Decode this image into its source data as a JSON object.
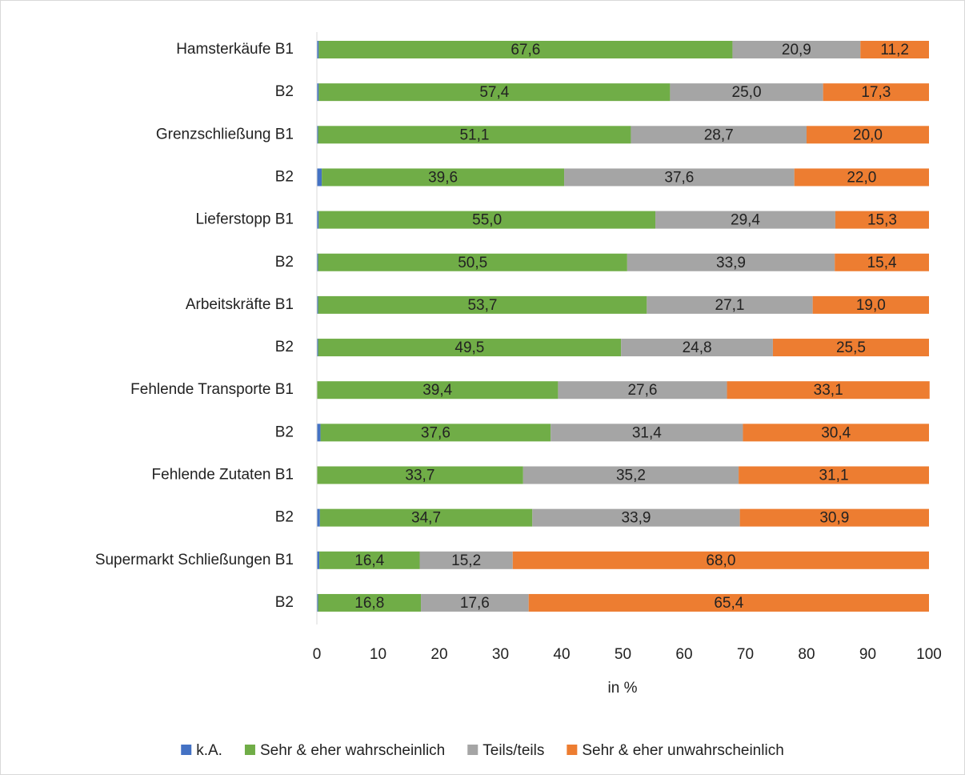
{
  "chart_data": {
    "type": "stacked_barh",
    "categories": [
      "Hamsterkäufe B1",
      "B2",
      "Grenzschließung B1",
      "B2",
      "Lieferstopp B1",
      "B2",
      "Arbeitskräfte B1",
      "B2",
      "Fehlende Transporte B1",
      "B2",
      "Fehlende Zutaten B1",
      "B2",
      "Supermarkt Schließungen B1",
      "B2"
    ],
    "series": [
      {
        "name": "k.A.",
        "color": "#4472c4",
        "values": [
          0.3,
          0.3,
          0.2,
          0.8,
          0.3,
          0.2,
          0.2,
          0.2,
          0,
          0.6,
          0,
          0.5,
          0.4,
          0.2
        ]
      },
      {
        "name": "Sehr & eher wahrscheinlich",
        "color": "#70ad47",
        "values": [
          67.6,
          57.4,
          51.1,
          39.6,
          55.0,
          50.5,
          53.7,
          49.5,
          39.4,
          37.6,
          33.7,
          34.7,
          16.4,
          16.8
        ],
        "value_labels": [
          "67,6",
          "57,4",
          "51,1",
          "39,6",
          "55,0",
          "50,5",
          "53,7",
          "49,5",
          "39,4",
          "37,6",
          "33,7",
          "34,7",
          "16,4",
          "16,8"
        ]
      },
      {
        "name": "Teils/teils",
        "color": "#a5a5a5",
        "values": [
          20.9,
          25.0,
          28.7,
          37.6,
          29.4,
          33.9,
          27.1,
          24.8,
          27.6,
          31.4,
          35.2,
          33.9,
          15.2,
          17.6
        ],
        "value_labels": [
          "20,9",
          "25,0",
          "28,7",
          "37,6",
          "29,4",
          "33,9",
          "27,1",
          "24,8",
          "27,6",
          "31,4",
          "35,2",
          "33,9",
          "15,2",
          "17,6"
        ]
      },
      {
        "name": "Sehr & eher unwahrscheinlich",
        "color": "#ed7d31",
        "values": [
          11.2,
          17.3,
          20.0,
          22.0,
          15.3,
          15.4,
          19.0,
          25.5,
          33.1,
          30.4,
          31.1,
          30.9,
          68.0,
          65.4
        ],
        "value_labels": [
          "11,2",
          "17,3",
          "20,0",
          "22,0",
          "15,3",
          "15,4",
          "19,0",
          "25,5",
          "33,1",
          "30,4",
          "31,1",
          "30,9",
          "68,0",
          "65,4"
        ]
      }
    ],
    "xlabel": "in %",
    "xlim": [
      0,
      100
    ],
    "xticks": [
      0,
      10,
      20,
      30,
      40,
      50,
      60,
      70,
      80,
      90,
      100
    ],
    "grid": false,
    "legend": "bottom"
  }
}
